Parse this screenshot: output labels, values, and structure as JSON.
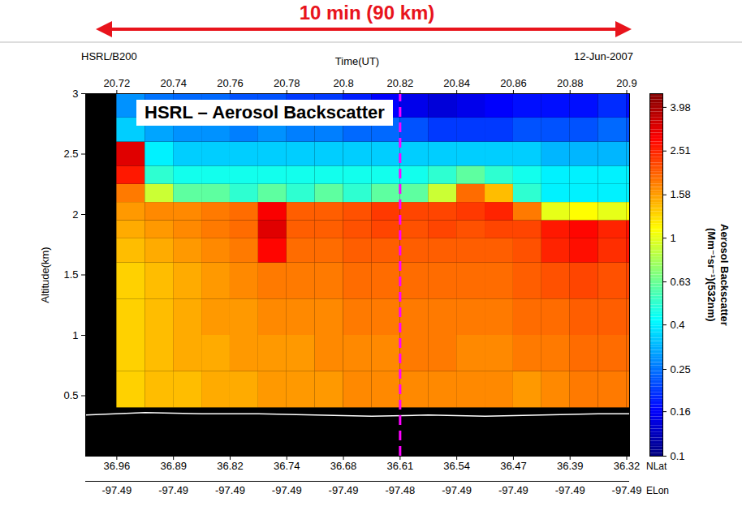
{
  "chart_data": {
    "type": "heatmap",
    "title": "HSRL – Aerosol Backscatter",
    "annotation": "10 min (90 km)",
    "header_left": "HSRL/B200",
    "header_right": "12-Jun-2007",
    "x_label": "Time(UT)",
    "y_label": "Altitude(km)",
    "xlim": [
      20.709,
      20.901
    ],
    "xticks": [
      20.72,
      20.74,
      20.76,
      20.78,
      20.8,
      20.82,
      20.84,
      20.86,
      20.88,
      20.9
    ],
    "ylim": [
      0,
      3
    ],
    "yticks": [
      0.5,
      1,
      1.5,
      2,
      2.5,
      3
    ],
    "x_edges": [
      20.709,
      20.72,
      20.73,
      20.74,
      20.75,
      20.76,
      20.77,
      20.78,
      20.79,
      20.8,
      20.81,
      20.82,
      20.83,
      20.84,
      20.85,
      20.86,
      20.87,
      20.88,
      20.89,
      20.9,
      20.901
    ],
    "y_edges": [
      0.4,
      0.7,
      1.0,
      1.3,
      1.6,
      1.8,
      1.95,
      2.1,
      2.25,
      2.4,
      2.6,
      2.8,
      3.0
    ],
    "cells": [
      [
        null,
        1.3,
        1.4,
        1.4,
        1.5,
        1.5,
        1.6,
        1.6,
        1.6,
        1.7,
        1.7,
        1.7,
        1.7,
        1.7,
        1.7,
        1.6,
        1.7,
        1.8,
        1.8,
        1.8
      ],
      [
        null,
        1.3,
        1.4,
        1.5,
        1.5,
        1.6,
        1.6,
        1.6,
        1.7,
        1.7,
        1.7,
        1.8,
        1.8,
        1.7,
        1.7,
        1.8,
        1.8,
        1.9,
        1.9,
        1.9
      ],
      [
        null,
        1.3,
        1.4,
        1.5,
        1.6,
        1.6,
        1.7,
        1.7,
        1.7,
        1.8,
        1.8,
        1.8,
        1.8,
        1.8,
        1.8,
        1.9,
        1.9,
        2.0,
        2.0,
        2.0
      ],
      [
        null,
        1.3,
        1.4,
        1.5,
        1.6,
        1.7,
        1.8,
        1.8,
        1.8,
        1.9,
        1.9,
        1.9,
        1.9,
        1.9,
        1.9,
        2.0,
        2.1,
        2.2,
        2.1,
        2.2
      ],
      [
        null,
        1.4,
        1.5,
        1.6,
        1.7,
        1.8,
        2.8,
        1.9,
        1.9,
        2.0,
        2.0,
        2.0,
        2.0,
        2.0,
        2.0,
        2.1,
        2.5,
        2.7,
        2.4,
        2.6
      ],
      [
        null,
        1.5,
        1.6,
        1.7,
        1.8,
        1.9,
        3.2,
        2.0,
        2.0,
        2.1,
        2.2,
        2.1,
        2.2,
        2.1,
        2.2,
        2.2,
        2.6,
        2.8,
        2.5,
        2.7
      ],
      [
        null,
        1.6,
        1.7,
        1.7,
        1.8,
        1.9,
        2.9,
        2.0,
        2.0,
        2.1,
        2.3,
        2.2,
        2.2,
        2.3,
        2.5,
        1.8,
        1.0,
        1.1,
        1.0,
        1.1
      ],
      [
        null,
        1.8,
        0.9,
        0.6,
        0.6,
        0.5,
        0.6,
        0.5,
        0.6,
        0.5,
        0.6,
        0.6,
        0.9,
        1.9,
        1.4,
        0.5,
        0.4,
        0.4,
        0.4,
        0.4
      ],
      [
        null,
        2.6,
        0.5,
        0.45,
        0.45,
        0.45,
        0.45,
        0.45,
        0.45,
        0.45,
        0.45,
        0.45,
        0.5,
        0.6,
        0.5,
        0.45,
        0.4,
        0.4,
        0.4,
        0.4
      ],
      [
        null,
        3.2,
        0.4,
        0.35,
        0.35,
        0.35,
        0.35,
        0.35,
        0.35,
        0.35,
        0.35,
        0.35,
        0.35,
        0.35,
        0.35,
        0.35,
        0.32,
        0.32,
        0.32,
        0.32
      ],
      [
        null,
        0.35,
        0.3,
        0.28,
        0.28,
        0.26,
        0.28,
        0.26,
        0.26,
        0.24,
        0.24,
        0.22,
        0.2,
        0.2,
        0.2,
        0.22,
        0.22,
        0.22,
        0.24,
        0.22
      ],
      [
        null,
        0.28,
        0.25,
        0.24,
        0.24,
        0.22,
        0.22,
        0.2,
        0.2,
        0.18,
        0.16,
        0.15,
        0.14,
        0.15,
        0.16,
        0.17,
        0.17,
        0.17,
        0.19,
        0.17
      ]
    ],
    "colorbar": {
      "label": "Aerosol Backscatter (Mm⁻¹sr⁻¹)(532nm)",
      "range": [
        0.1,
        4.6
      ],
      "ticks": [
        0.1,
        0.16,
        0.25,
        0.4,
        0.63,
        1,
        1.58,
        2.51,
        3.98
      ]
    },
    "lat_axis": {
      "label": "NLat",
      "ticks": [
        {
          "value": 20.72,
          "label": "36.96"
        },
        {
          "value": 20.74,
          "label": "36.89"
        },
        {
          "value": 20.76,
          "label": "36.82"
        },
        {
          "value": 20.78,
          "label": "36.74"
        },
        {
          "value": 20.8,
          "label": "36.68"
        },
        {
          "value": 20.82,
          "label": "36.61"
        },
        {
          "value": 20.84,
          "label": "36.54"
        },
        {
          "value": 20.86,
          "label": "36.47"
        },
        {
          "value": 20.88,
          "label": "36.39"
        },
        {
          "value": 20.9,
          "label": "36.32"
        }
      ]
    },
    "lon_axis": {
      "label": "ELon",
      "ticks": [
        {
          "value": 20.72,
          "label": "-97.49"
        },
        {
          "value": 20.74,
          "label": "-97.49"
        },
        {
          "value": 20.76,
          "label": "-97.49"
        },
        {
          "value": 20.78,
          "label": "-97.49"
        },
        {
          "value": 20.8,
          "label": "-97.49"
        },
        {
          "value": 20.82,
          "label": "-97.48"
        },
        {
          "value": 20.84,
          "label": "-97.49"
        },
        {
          "value": 20.86,
          "label": "-97.49"
        },
        {
          "value": 20.88,
          "label": "-97.49"
        },
        {
          "value": 20.9,
          "label": "-97.49"
        }
      ]
    },
    "ground": {
      "x": [
        20.709,
        20.73,
        20.75,
        20.77,
        20.79,
        20.81,
        20.83,
        20.85,
        20.87,
        20.89,
        20.901
      ],
      "values": [
        0.34,
        0.36,
        0.35,
        0.35,
        0.34,
        0.33,
        0.34,
        0.33,
        0.34,
        0.35,
        0.35
      ]
    },
    "reference_line": {
      "x": 20.82,
      "color": "#ff00ff",
      "line_style": "dashed"
    }
  }
}
